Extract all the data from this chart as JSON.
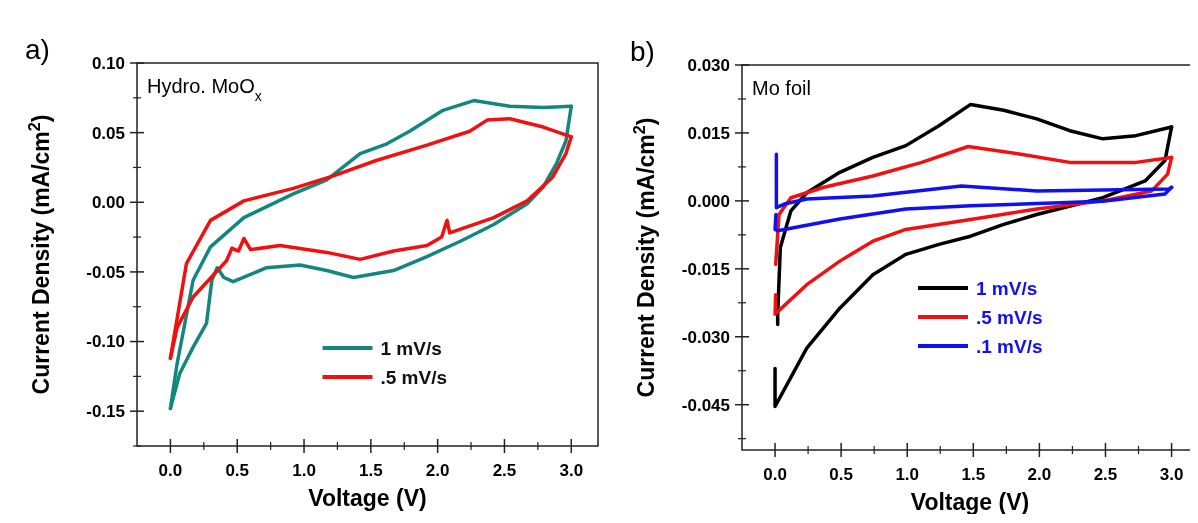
{
  "chart_data": [
    {
      "type": "line",
      "title": "a)",
      "xlabel": "Voltage (V)",
      "ylabel": "Current Density (mA/cm$^{2}$)",
      "annotations": [
        "Hydro. MoO$_{x}$"
      ],
      "xlim": [
        -0.25,
        3.2
      ],
      "ylim": [
        -0.175,
        0.1
      ],
      "xticks": [
        {
          "value": 0,
          "label": "0.0"
        },
        {
          "value": 0.5,
          "label": "0.5"
        },
        {
          "value": 1,
          "label": "1.0"
        },
        {
          "value": 1.5,
          "label": "1.5"
        },
        {
          "value": 2,
          "label": "2.0"
        },
        {
          "value": 2.5,
          "label": "2.5"
        },
        {
          "value": 3,
          "label": "3.0"
        }
      ],
      "yticks": [
        {
          "value": -0.15,
          "label": "-0.15"
        },
        {
          "value": -0.1,
          "label": "-0.10"
        },
        {
          "value": -0.05,
          "label": "-0.05"
        },
        {
          "value": 0,
          "label": "0.00"
        },
        {
          "value": 0.05,
          "label": "0.05"
        },
        {
          "value": 0.1,
          "label": "0.10"
        }
      ],
      "legend": "bottom",
      "grid": false,
      "line_style": "solid",
      "series": [
        {
          "name": "1 mV/s",
          "color": "#13877f",
          "x": [
            0,
            0.05,
            0.17,
            0.3,
            0.55,
            0.92,
            1.17,
            1.42,
            1.62,
            1.79,
            2.04,
            2.27,
            2.54,
            2.79,
            3.0
          ],
          "values": [
            -0.148,
            -0.116,
            -0.056,
            -0.032,
            -0.011,
            0.006,
            0.016,
            0.035,
            0.042,
            0.051,
            0.066,
            0.073,
            0.069,
            0.068,
            0.069
          ]
        },
        {
          "color": "#13877f",
          "x": [
            3.0,
            2.96,
            2.89,
            2.79,
            2.67,
            2.42,
            2.17,
            1.92,
            1.67,
            1.37,
            1.17,
            0.97,
            0.72,
            0.47,
            0.4,
            0.35,
            0.31,
            0.27,
            0.17,
            0.07,
            0
          ],
          "values": [
            0.069,
            0.044,
            0.028,
            0.011,
            -0.001,
            -0.016,
            -0.028,
            -0.039,
            -0.049,
            -0.054,
            -0.049,
            -0.045,
            -0.047,
            -0.057,
            -0.054,
            -0.047,
            -0.056,
            -0.087,
            -0.104,
            -0.123,
            -0.148
          ]
        },
        {
          "name": ".5 mV/s",
          "color": "#f01010",
          "x": [
            0,
            0.12,
            0.3,
            0.55,
            0.92,
            1.22,
            1.54,
            1.92,
            2.24,
            2.37,
            2.54,
            2.79,
            3.0
          ],
          "values": [
            -0.112,
            -0.044,
            -0.013,
            0.001,
            0.01,
            0.019,
            0.03,
            0.041,
            0.051,
            0.059,
            0.06,
            0.054,
            0.047
          ]
        },
        {
          "color": "#f01010",
          "x": [
            3.0,
            2.96,
            2.86,
            2.67,
            2.42,
            2.09,
            2.07,
            2.03,
            1.92,
            1.67,
            1.42,
            1.17,
            0.82,
            0.6,
            0.55,
            0.51,
            0.46,
            0.42,
            0.17,
            0.05,
            0
          ],
          "values": [
            0.047,
            0.035,
            0.018,
            0.001,
            -0.011,
            -0.022,
            -0.013,
            -0.025,
            -0.031,
            -0.035,
            -0.041,
            -0.036,
            -0.031,
            -0.034,
            -0.026,
            -0.035,
            -0.033,
            -0.042,
            -0.068,
            -0.09,
            -0.112
          ]
        }
      ]
    },
    {
      "type": "line",
      "title": "b)",
      "xlabel": "Voltage (V)",
      "ylabel": "Current Density (mA/cm$^{2}$)",
      "annotations": [
        "Mo foil"
      ],
      "xlim": [
        -0.25,
        3.2
      ],
      "ylim": [
        -0.055,
        0.03
      ],
      "xticks": [
        {
          "value": 0,
          "label": "0.0"
        },
        {
          "value": 0.5,
          "label": "0.5"
        },
        {
          "value": 1,
          "label": "1.0"
        },
        {
          "value": 1.5,
          "label": "1.5"
        },
        {
          "value": 2,
          "label": "2.0"
        },
        {
          "value": 2.5,
          "label": "2.5"
        },
        {
          "value": 3,
          "label": "3.0"
        }
      ],
      "yticks": [
        {
          "value": -0.045,
          "label": "-0.045"
        },
        {
          "value": -0.03,
          "label": "-0.030"
        },
        {
          "value": -0.015,
          "label": "-0.015"
        },
        {
          "value": 0,
          "label": "0.000"
        },
        {
          "value": 0.015,
          "label": "0.015"
        },
        {
          "value": 0.03,
          "label": "0.030"
        }
      ],
      "legend": "bottom right",
      "grid": false,
      "line_style": "solid",
      "series": [
        {
          "name": "1 mV/s",
          "color": "#000000",
          "x": [
            0,
            0,
            0.24,
            0.49,
            0.74,
            0.99,
            1.24,
            1.48,
            1.73,
            1.98,
            2.48,
            2.8,
            2.95,
            3.0
          ],
          "values": [
            -0.037,
            -0.0454,
            -0.0325,
            -0.0237,
            -0.0163,
            -0.0118,
            -0.0096,
            -0.0078,
            -0.0052,
            -0.003,
            0.0007,
            0.0044,
            0.0089,
            0.0163
          ]
        },
        {
          "color": "#000000",
          "x": [
            3.0,
            2.73,
            2.48,
            2.23,
            1.98,
            1.73,
            1.48,
            1.24,
            0.99,
            0.74,
            0.49,
            0.24,
            0.12,
            0.04,
            0.02,
            0.02
          ],
          "values": [
            0.0163,
            0.0144,
            0.0137,
            0.0155,
            0.0181,
            0.02,
            0.0213,
            0.0166,
            0.0122,
            0.0096,
            0.0063,
            0.0018,
            -0.0022,
            -0.0103,
            -0.0251,
            -0.0273
          ]
        },
        {
          "name": ".5 mV/s",
          "color": "#f01010",
          "x": [
            0.005,
            0,
            0.24,
            0.49,
            0.74,
            0.99,
            1.48,
            1.98,
            2.48,
            2.85,
            2.97,
            3.0
          ],
          "values": [
            -0.0207,
            -0.025,
            -0.0185,
            -0.0133,
            -0.0089,
            -0.0063,
            -0.0041,
            -0.0018,
            0.0,
            0.0022,
            0.0059,
            0.0096
          ]
        },
        {
          "color": "#f01010",
          "x": [
            3.0,
            2.73,
            2.23,
            1.86,
            1.46,
            1.11,
            0.74,
            0.37,
            0.12,
            0.03,
            0.005
          ],
          "values": [
            0.0096,
            0.0085,
            0.0085,
            0.0103,
            0.012,
            0.0085,
            0.0055,
            0.003,
            0.0007,
            -0.003,
            -0.014
          ]
        },
        {
          "name": ".1 mV/s",
          "color": "#1010f0",
          "x": [
            0.01,
            0.01,
            0.07,
            0.24,
            0.74,
            1.41,
            1.98,
            2.98,
            3.0
          ],
          "values": [
            0.0103,
            -0.0015,
            -0.0007,
            0.0004,
            0.0011,
            0.0033,
            0.0022,
            0.0026,
            0.003
          ]
        },
        {
          "color": "#1010f0",
          "x": [
            3.0,
            2.95,
            2.48,
            1.48,
            0.99,
            0.49,
            0.02,
            0,
            0.007
          ],
          "values": [
            0.003,
            0.0015,
            -0.0001,
            -0.0011,
            -0.0018,
            -0.004,
            -0.0066,
            -0.0063,
            -0.003
          ]
        }
      ]
    }
  ]
}
